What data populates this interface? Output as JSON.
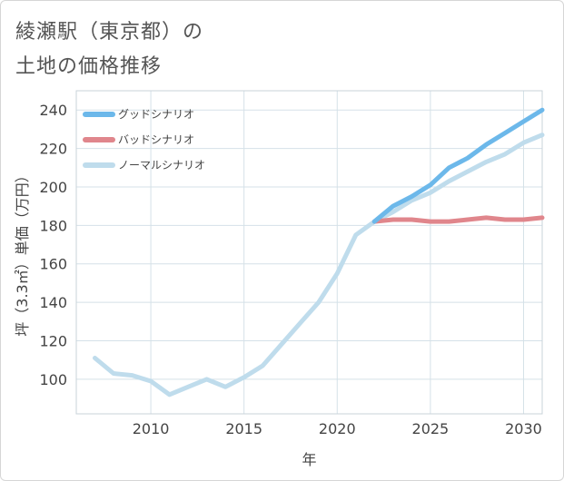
{
  "page": {
    "title_line1": "綾瀬駅（東京都）の",
    "title_line2": "土地の価格推移"
  },
  "chart_data": {
    "type": "line",
    "xlabel": "年",
    "ylabel": "坪（3.3㎡）単価（万円）",
    "xlim": [
      2006,
      2031
    ],
    "ylim": [
      82,
      250
    ],
    "xticks": [
      2010,
      2015,
      2020,
      2025,
      2030
    ],
    "yticks": [
      100,
      120,
      140,
      160,
      180,
      200,
      220,
      240
    ],
    "grid": true,
    "legend_position": "top-left",
    "series": [
      {
        "name": "グッドシナリオ",
        "color": "#6cb8ea",
        "x": [
          2022,
          2023,
          2024,
          2025,
          2026,
          2027,
          2028,
          2029,
          2030,
          2031
        ],
        "y": [
          182,
          190,
          195,
          201,
          210,
          215,
          222,
          228,
          234,
          240
        ]
      },
      {
        "name": "バッドシナリオ",
        "color": "#e0868c",
        "x": [
          2022,
          2023,
          2024,
          2025,
          2026,
          2027,
          2028,
          2029,
          2030,
          2031
        ],
        "y": [
          182,
          183,
          183,
          182,
          182,
          183,
          184,
          183,
          183,
          184
        ]
      },
      {
        "name": "ノーマルシナリオ",
        "color": "#bfdcec",
        "x": [
          2007,
          2008,
          2009,
          2010,
          2011,
          2012,
          2013,
          2014,
          2015,
          2016,
          2017,
          2018,
          2019,
          2020,
          2021,
          2022,
          2023,
          2024,
          2025,
          2026,
          2027,
          2028,
          2029,
          2030,
          2031
        ],
        "y": [
          111,
          103,
          102,
          99,
          92,
          96,
          100,
          96,
          101,
          107,
          118,
          129,
          140,
          155,
          175,
          182,
          187,
          193,
          197,
          203,
          208,
          213,
          217,
          223,
          227
        ]
      }
    ]
  }
}
